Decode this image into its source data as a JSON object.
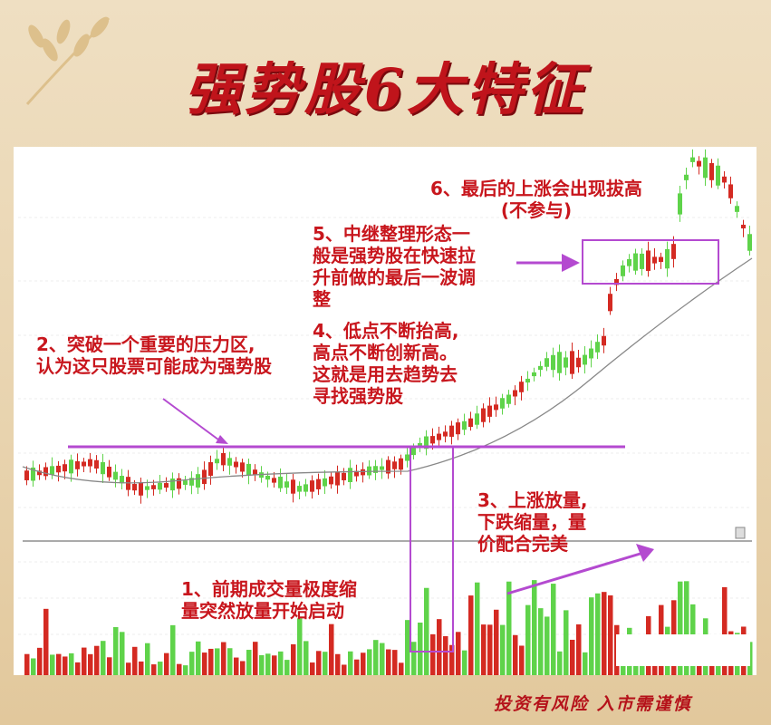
{
  "title": "强势股6大特征",
  "notes": {
    "n1": "1、前期成交量极度缩\n量突然放量开始启动",
    "n2": "2、突破一个重要的压力区,\n认为这只股票可能成为强势股",
    "n3": "3、上涨放量,\n下跌缩量，量\n价配合完美",
    "n4": "4、低点不断抬高,\n高点不断创新高。\n这就是用去趋势去\n寻找强势股",
    "n5": "5、中继整理形态一\n般是强势股在快速拉\n升前做的最后一波调\n整",
    "n6": "6、最后的上涨会出现拔高\n(不参与)"
  },
  "footer": "投资有风险   入市需谨慎",
  "colors": {
    "up": "#d42a22",
    "down": "#5fd34a",
    "annotation": "#b44ad0",
    "text": "#c8161d",
    "ma": "#888888"
  }
}
